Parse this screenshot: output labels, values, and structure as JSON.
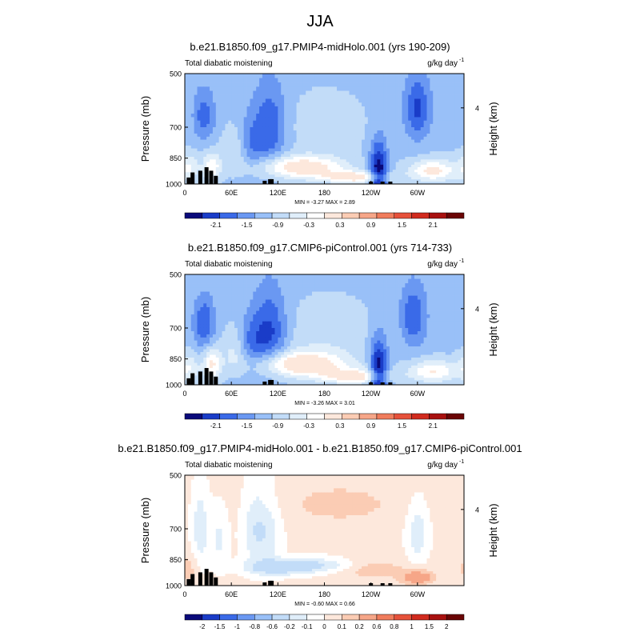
{
  "figure": {
    "title": "JJA"
  },
  "chart_data": [
    {
      "type": "heatmap",
      "title": "b.e21.B1850.f09_g17.PMIP4-midHolo.001 (yrs 190-209)",
      "left_label": "Total diabatic moistening",
      "units_base": "g/kg day",
      "units_exp": "-1",
      "ylabel": "Pressure (mb)",
      "ylabel_right": "Height (km)",
      "x_ticks": [
        "0",
        "60E",
        "120E",
        "180",
        "120W",
        "60W"
      ],
      "y_ticks": [
        "500",
        "700",
        "850",
        "1000"
      ],
      "y_right_ticks": [
        "4"
      ],
      "stats": "MIN =  -3.27  MAX =  2.89",
      "colorbar_labels": [
        "-2.1",
        "-1.5",
        "-0.9",
        "-0.3",
        "0.3",
        "0.9",
        "1.5",
        "2.1"
      ],
      "colorbar_colors": [
        "#0a0a7a",
        "#1a3cc8",
        "#3a6ae8",
        "#6a98f2",
        "#99c0f8",
        "#c2dcf8",
        "#e0eefa",
        "#ffffff",
        "#fde8dc",
        "#fbccb4",
        "#f6a688",
        "#f07c5c",
        "#e6513a",
        "#d12a1e",
        "#a8100f",
        "#6a0505"
      ],
      "features": [
        {
          "lon": 150,
          "p": 900,
          "val": 2.6,
          "w": 40,
          "h": 90
        },
        {
          "lon": 220,
          "p": 960,
          "val": 2.4,
          "w": 30,
          "h": 50
        },
        {
          "lon": 250,
          "p": 940,
          "val": -3.0,
          "w": 8,
          "h": 250
        },
        {
          "lon": 300,
          "p": 620,
          "val": -1.8,
          "w": 12,
          "h": 180
        },
        {
          "lon": 320,
          "p": 920,
          "val": 2.2,
          "w": 22,
          "h": 90
        },
        {
          "lon": 25,
          "p": 650,
          "val": -1.4,
          "w": 10,
          "h": 150
        },
        {
          "lon": 35,
          "p": 900,
          "val": 1.8,
          "w": 8,
          "h": 120
        },
        {
          "lon": 5,
          "p": 900,
          "val": 1.2,
          "w": 10,
          "h": 120
        },
        {
          "lon": 110,
          "p": 700,
          "val": -1.6,
          "w": 15,
          "h": 260
        },
        {
          "lon": 85,
          "p": 780,
          "val": -1.0,
          "w": 12,
          "h": 200
        },
        {
          "lon": 65,
          "p": 800,
          "val": 0.8,
          "w": 12,
          "h": 160
        },
        {
          "lon": 180,
          "p": 700,
          "val": 0.5,
          "w": 40,
          "h": 200
        }
      ],
      "topography": [
        [
          5,
          960
        ],
        [
          10,
          930
        ],
        [
          20,
          920
        ],
        [
          28,
          900
        ],
        [
          34,
          920
        ],
        [
          40,
          950
        ],
        [
          103,
          980
        ],
        [
          110,
          970
        ],
        [
          112,
          970
        ],
        [
          240,
          985
        ],
        [
          255,
          985
        ],
        [
          265,
          985
        ]
      ]
    },
    {
      "type": "heatmap",
      "title": "b.e21.B1850.f09_g17.CMIP6-piControl.001 (yrs 714-733)",
      "left_label": "Total diabatic moistening",
      "units_base": "g/kg day",
      "units_exp": "-1",
      "ylabel": "Pressure (mb)",
      "ylabel_right": "Height (km)",
      "x_ticks": [
        "0",
        "60E",
        "120E",
        "180",
        "120W",
        "60W"
      ],
      "y_ticks": [
        "500",
        "700",
        "850",
        "1000"
      ],
      "y_right_ticks": [
        "4"
      ],
      "stats": "MIN =  -3.26  MAX =  3.01",
      "colorbar_labels": [
        "-2.1",
        "-1.5",
        "-0.9",
        "-0.3",
        "0.3",
        "0.9",
        "1.5",
        "2.1"
      ],
      "colorbar_colors": [
        "#0a0a7a",
        "#1a3cc8",
        "#3a6ae8",
        "#6a98f2",
        "#99c0f8",
        "#c2dcf8",
        "#e0eefa",
        "#ffffff",
        "#fde8dc",
        "#fbccb4",
        "#f6a688",
        "#f07c5c",
        "#e6513a",
        "#d12a1e",
        "#a8100f",
        "#6a0505"
      ],
      "features": [
        {
          "lon": 150,
          "p": 880,
          "val": 2.8,
          "w": 42,
          "h": 100
        },
        {
          "lon": 220,
          "p": 950,
          "val": 2.4,
          "w": 30,
          "h": 60
        },
        {
          "lon": 250,
          "p": 930,
          "val": -3.0,
          "w": 8,
          "h": 260
        },
        {
          "lon": 295,
          "p": 650,
          "val": -1.6,
          "w": 12,
          "h": 180
        },
        {
          "lon": 320,
          "p": 920,
          "val": 2.0,
          "w": 22,
          "h": 90
        },
        {
          "lon": 25,
          "p": 680,
          "val": -1.6,
          "w": 10,
          "h": 160
        },
        {
          "lon": 35,
          "p": 880,
          "val": 2.0,
          "w": 8,
          "h": 130
        },
        {
          "lon": 5,
          "p": 900,
          "val": 1.2,
          "w": 10,
          "h": 120
        },
        {
          "lon": 110,
          "p": 720,
          "val": -1.8,
          "w": 15,
          "h": 260
        },
        {
          "lon": 85,
          "p": 780,
          "val": -1.2,
          "w": 12,
          "h": 200
        },
        {
          "lon": 65,
          "p": 800,
          "val": 0.9,
          "w": 12,
          "h": 160
        },
        {
          "lon": 185,
          "p": 720,
          "val": 0.6,
          "w": 40,
          "h": 200
        }
      ],
      "topography": [
        [
          5,
          960
        ],
        [
          10,
          930
        ],
        [
          20,
          920
        ],
        [
          28,
          900
        ],
        [
          34,
          920
        ],
        [
          40,
          950
        ],
        [
          103,
          980
        ],
        [
          110,
          970
        ],
        [
          112,
          970
        ],
        [
          240,
          985
        ],
        [
          255,
          985
        ],
        [
          265,
          985
        ]
      ]
    },
    {
      "type": "heatmap",
      "title": "b.e21.B1850.f09_g17.PMIP4-midHolo.001 - b.e21.B1850.f09_g17.CMIP6-piControl.001",
      "left_label": "Total diabatic moistening",
      "units_base": "g/kg day",
      "units_exp": "-1",
      "ylabel": "Pressure (mb)",
      "ylabel_right": "Height (km)",
      "x_ticks": [
        "0",
        "60E",
        "120E",
        "180",
        "120W",
        "60W"
      ],
      "y_ticks": [
        "500",
        "700",
        "850",
        "1000"
      ],
      "y_right_ticks": [
        "4"
      ],
      "stats": "MIN =  -0.60  MAX =  0.66",
      "colorbar_labels": [
        "-2",
        "-1.5",
        "-1",
        "-0.8",
        "-0.6",
        "-0.2",
        "-0.1",
        "0",
        "0.1",
        "0.2",
        "0.6",
        "0.8",
        "1",
        "1.5",
        "2"
      ],
      "colorbar_colors": [
        "#0a0a7a",
        "#1a3cc8",
        "#3a6ae8",
        "#6a98f2",
        "#99c0f8",
        "#c2dcf8",
        "#e0eefa",
        "#ffffff",
        "#fde8dc",
        "#fbccb4",
        "#f6a688",
        "#f07c5c",
        "#e6513a",
        "#d12a1e",
        "#a8100f",
        "#6a0505"
      ],
      "features": [
        {
          "lon": 160,
          "p": 880,
          "val": -0.25,
          "w": 45,
          "h": 60
        },
        {
          "lon": 120,
          "p": 900,
          "val": -0.2,
          "w": 30,
          "h": 60
        },
        {
          "lon": 20,
          "p": 700,
          "val": -0.2,
          "w": 8,
          "h": 250
        },
        {
          "lon": 45,
          "p": 750,
          "val": -0.15,
          "w": 8,
          "h": 200
        },
        {
          "lon": 90,
          "p": 700,
          "val": -0.2,
          "w": 12,
          "h": 250
        },
        {
          "lon": 110,
          "p": 720,
          "val": -0.15,
          "w": 12,
          "h": 250
        },
        {
          "lon": 300,
          "p": 720,
          "val": -0.2,
          "w": 10,
          "h": 200
        },
        {
          "lon": 300,
          "p": 950,
          "val": 0.3,
          "w": 15,
          "h": 60
        },
        {
          "lon": 240,
          "p": 900,
          "val": 0.15,
          "w": 30,
          "h": 80
        },
        {
          "lon": 200,
          "p": 600,
          "val": 0.1,
          "w": 60,
          "h": 120
        },
        {
          "lon": 5,
          "p": 900,
          "val": 0.12,
          "w": 8,
          "h": 120
        }
      ],
      "topography": [
        [
          5,
          960
        ],
        [
          10,
          930
        ],
        [
          20,
          920
        ],
        [
          28,
          900
        ],
        [
          34,
          920
        ],
        [
          40,
          950
        ],
        [
          103,
          980
        ],
        [
          110,
          970
        ],
        [
          112,
          970
        ],
        [
          240,
          985
        ],
        [
          255,
          985
        ],
        [
          265,
          985
        ]
      ]
    }
  ]
}
